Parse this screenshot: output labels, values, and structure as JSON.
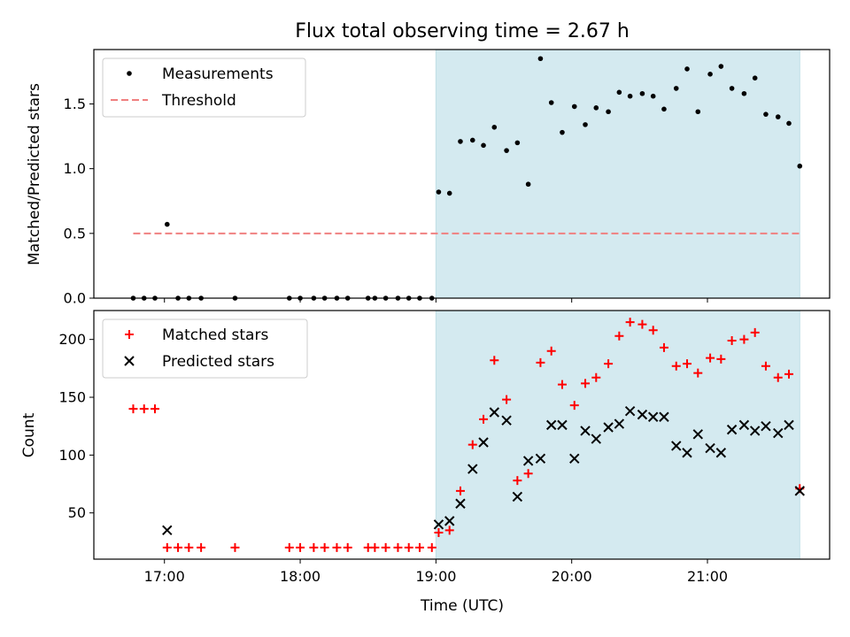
{
  "chart_data": [
    {
      "type": "scatter",
      "title": "Flux total observing time = 2.67 h",
      "xlabel": "",
      "ylabel": "Matched/Predicted stars",
      "ylim": [
        0,
        1.92
      ],
      "yticks": [
        0.0,
        0.5,
        1.0,
        1.5
      ],
      "ytick_labels": [
        "0.0",
        "0.5",
        "1.0",
        "1.5"
      ],
      "xlim_hours": [
        16.48,
        21.9
      ],
      "xticks_hours": [
        17,
        18,
        19,
        20,
        21
      ],
      "shaded_span_hours": [
        19.0,
        21.68
      ],
      "shaded_color": "#d4eaf0",
      "grid": false,
      "legend_position": "upper left",
      "series": [
        {
          "name": "Measurements",
          "marker": "dot",
          "color": "#000000",
          "x": [
            16.77,
            16.85,
            16.93,
            17.02,
            17.1,
            17.18,
            17.27,
            17.52,
            17.92,
            18.0,
            18.1,
            18.18,
            18.27,
            18.35,
            18.5,
            18.55,
            18.63,
            18.72,
            18.8,
            18.88,
            18.97,
            19.02,
            19.1,
            19.18,
            19.27,
            19.35,
            19.43,
            19.52,
            19.6,
            19.68,
            19.77,
            19.85,
            19.93,
            20.02,
            20.1,
            20.18,
            20.27,
            20.35,
            20.43,
            20.52,
            20.6,
            20.68,
            20.77,
            20.85,
            20.93,
            21.02,
            21.1,
            21.18,
            21.27,
            21.35,
            21.43,
            21.52,
            21.6,
            21.68
          ],
          "y": [
            0.0,
            0.0,
            0.0,
            0.57,
            0.0,
            0.0,
            0.0,
            0.0,
            0.0,
            0.0,
            0.0,
            0.0,
            0.0,
            0.0,
            0.0,
            0.0,
            0.0,
            0.0,
            0.0,
            0.0,
            0.0,
            0.82,
            0.81,
            1.21,
            1.22,
            1.18,
            1.32,
            1.14,
            1.2,
            0.88,
            1.85,
            1.51,
            1.28,
            1.48,
            1.34,
            1.47,
            1.44,
            1.59,
            1.56,
            1.58,
            1.56,
            1.46,
            1.62,
            1.77,
            1.44,
            1.73,
            1.79,
            1.62,
            1.58,
            1.7,
            1.42,
            1.4,
            1.35,
            1.02
          ]
        },
        {
          "name": "Threshold",
          "marker": "dashed-line",
          "color": "#f08080",
          "x": [
            16.77,
            21.68
          ],
          "y": [
            0.5,
            0.5
          ]
        }
      ]
    },
    {
      "type": "scatter",
      "title": "",
      "xlabel": "Time (UTC)",
      "ylabel": "Count",
      "ylim": [
        10,
        225
      ],
      "yticks": [
        50,
        100,
        150,
        200
      ],
      "ytick_labels": [
        "50",
        "100",
        "150",
        "200"
      ],
      "xlim_hours": [
        16.48,
        21.9
      ],
      "xticks_hours": [
        17,
        18,
        19,
        20,
        21
      ],
      "xtick_labels": [
        "17:00",
        "18:00",
        "19:00",
        "20:00",
        "21:00"
      ],
      "shaded_span_hours": [
        19.0,
        21.68
      ],
      "shaded_color": "#d4eaf0",
      "grid": false,
      "legend_position": "upper left",
      "series": [
        {
          "name": "Matched stars",
          "marker": "plus",
          "color": "#ff0000",
          "x": [
            16.77,
            16.85,
            16.93,
            17.02,
            17.1,
            17.18,
            17.27,
            17.52,
            17.92,
            18.0,
            18.1,
            18.18,
            18.27,
            18.35,
            18.5,
            18.55,
            18.63,
            18.72,
            18.8,
            18.88,
            18.97,
            19.02,
            19.1,
            19.18,
            19.27,
            19.35,
            19.43,
            19.52,
            19.6,
            19.68,
            19.77,
            19.85,
            19.93,
            20.02,
            20.1,
            20.18,
            20.27,
            20.35,
            20.43,
            20.52,
            20.6,
            20.68,
            20.77,
            20.85,
            20.93,
            21.02,
            21.1,
            21.18,
            21.27,
            21.35,
            21.43,
            21.52,
            21.6,
            21.68
          ],
          "y": [
            140,
            140,
            140,
            20,
            20,
            20,
            20,
            20,
            20,
            20,
            20,
            20,
            20,
            20,
            20,
            20,
            20,
            20,
            20,
            20,
            20,
            33,
            35,
            69,
            109,
            131,
            182,
            148,
            78,
            84,
            180,
            190,
            161,
            143,
            162,
            167,
            179,
            203,
            215,
            213,
            208,
            193,
            177,
            179,
            171,
            184,
            183,
            199,
            200,
            206,
            177,
            167,
            170,
            71
          ]
        },
        {
          "name": "Predicted stars",
          "marker": "x",
          "color": "#000000",
          "x": [
            17.02,
            19.02,
            19.1,
            19.18,
            19.27,
            19.35,
            19.43,
            19.52,
            19.6,
            19.68,
            19.77,
            19.85,
            19.93,
            20.02,
            20.1,
            20.18,
            20.27,
            20.35,
            20.43,
            20.52,
            20.6,
            20.68,
            20.77,
            20.85,
            20.93,
            21.02,
            21.1,
            21.18,
            21.27,
            21.35,
            21.43,
            21.52,
            21.6,
            21.68
          ],
          "y": [
            35,
            40,
            43,
            58,
            88,
            111,
            137,
            130,
            64,
            95,
            97,
            126,
            126,
            97,
            121,
            114,
            124,
            127,
            138,
            135,
            133,
            133,
            108,
            102,
            118,
            106,
            102,
            122,
            126,
            121,
            125,
            119,
            126,
            69
          ]
        }
      ]
    }
  ]
}
